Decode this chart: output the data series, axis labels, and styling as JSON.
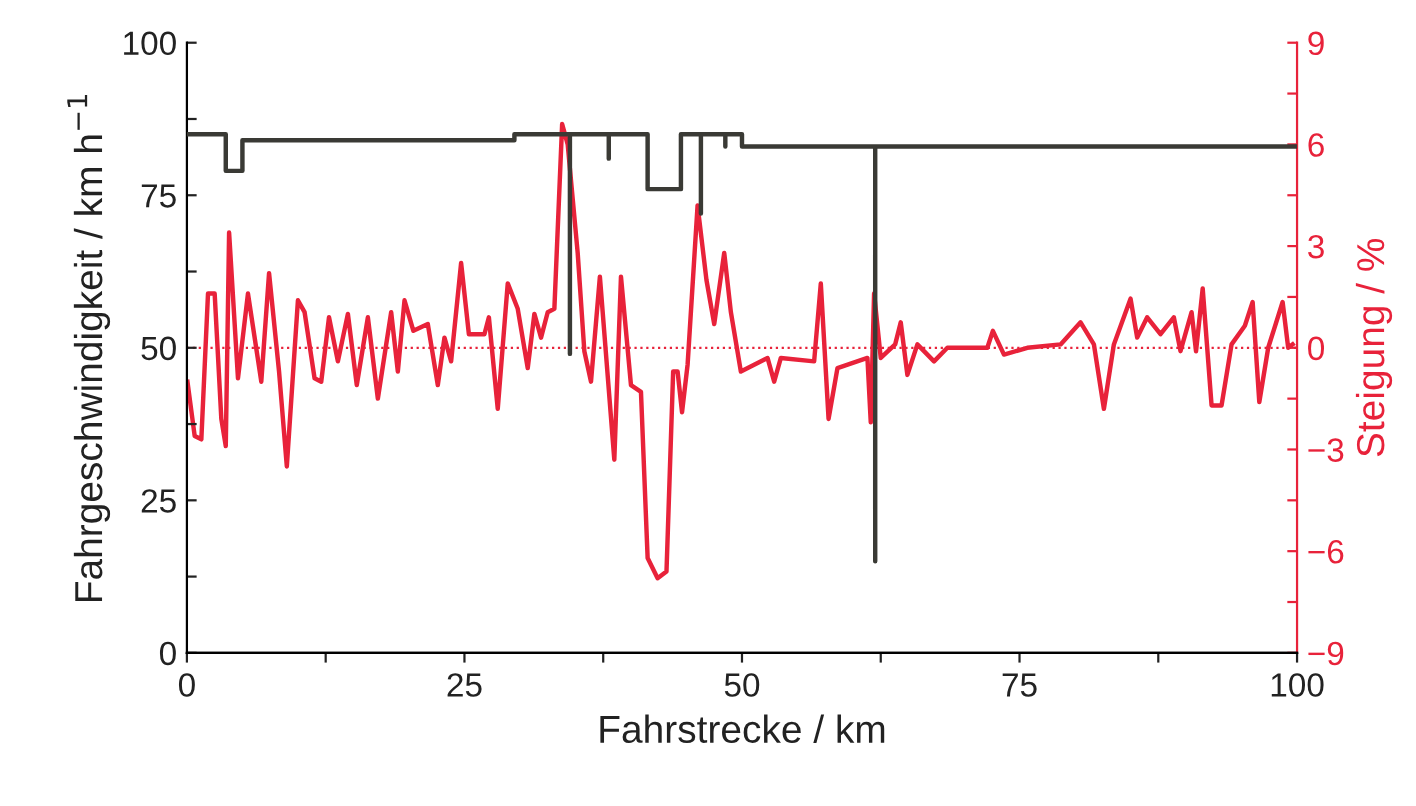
{
  "chart_data": {
    "type": "line",
    "xlabel": "Fahrstrecke / km",
    "ylabel": "Fahrgeschwindigkeit / km h$^{−1}$",
    "y2label": "Steigung / %",
    "xlim": [
      0,
      100
    ],
    "xticks": [
      0,
      {
        "value": 12.5,
        "label": null
      },
      25,
      {
        "value": 37.5,
        "label": null
      },
      50,
      {
        "value": 62.5,
        "label": null
      },
      75,
      {
        "value": 87.5,
        "label": null
      },
      100
    ],
    "ylim": [
      0,
      100
    ],
    "yticks": [
      0,
      {
        "value": 12.5,
        "label": null
      },
      25,
      {
        "value": 37.5,
        "label": null
      },
      50,
      {
        "value": 62.5,
        "label": null
      },
      75,
      {
        "value": 87.5,
        "label": null
      },
      100
    ],
    "y2lim": [
      -9,
      9
    ],
    "y2ticks": [
      {
        "value": -9,
        "label": "−9"
      },
      {
        "value": -7.5,
        "label": null
      },
      {
        "value": -6,
        "label": "−6"
      },
      {
        "value": -4.5,
        "label": null
      },
      {
        "value": -3,
        "label": "−3"
      },
      {
        "value": -1.5,
        "label": null
      },
      0,
      {
        "value": 1.5,
        "label": null
      },
      3,
      {
        "value": 4.5,
        "label": null
      },
      6,
      {
        "value": 7.5,
        "label": null
      },
      9
    ],
    "grid": false,
    "legend": false,
    "marker": "none",
    "line_style": "solid",
    "ref_lines": [
      {
        "axis": "y2",
        "value": 0,
        "color": "#e8223a",
        "line_style": "dotted"
      }
    ],
    "series": [
      {
        "color": "#3a3a35",
        "x": [
          0,
          3.5,
          3.5,
          5,
          5,
          29.5,
          29.5,
          34.5,
          34.5,
          34.5,
          38,
          38,
          38,
          41.5,
          41.5,
          44.5,
          44.5,
          46.3,
          46.3,
          46.3,
          48.5,
          48.5,
          48.5,
          50,
          50,
          62,
          62,
          62,
          100
        ],
        "values": [
          85,
          85,
          79,
          79,
          84,
          84,
          85,
          85,
          49,
          85,
          85,
          81,
          85,
          85,
          76,
          76,
          85,
          85,
          72,
          85,
          85,
          83,
          85,
          85,
          83,
          83,
          15,
          83,
          83
        ]
      },
      {
        "color": "#e8223a",
        "axis": "y2",
        "x": [
          0.05,
          0.7,
          1.3,
          1.9,
          2.5,
          3.1,
          3.5,
          3.8,
          4.6,
          5.5,
          6.7,
          7.4,
          8.3,
          9.0,
          10.0,
          10.6,
          11.5,
          12.1,
          12.8,
          13.6,
          14.5,
          15.3,
          16.3,
          17.2,
          18.4,
          19.0,
          19.6,
          20.4,
          21.7,
          22.6,
          23.2,
          23.8,
          24.7,
          25.4,
          26.8,
          27.2,
          28.0,
          28.9,
          29.8,
          30.7,
          31.3,
          31.9,
          32.5,
          33.1,
          33.8,
          34.3,
          35.2,
          35.8,
          36.4,
          37.2,
          38.5,
          39.1,
          40.0,
          40.9,
          41.5,
          42.4,
          43.2,
          43.8,
          44.2,
          44.6,
          45.1,
          46.0,
          46.8,
          47.5,
          48.4,
          49.0,
          49.9,
          52.3,
          52.9,
          53.5,
          56.5,
          57.1,
          57.8,
          58.6,
          61.3,
          61.6,
          61.9,
          62.5,
          63.8,
          64.3,
          64.9,
          65.8,
          67.3,
          68.5,
          72.1,
          72.6,
          73.6,
          75.7,
          78.7,
          80.5,
          81.7,
          82.6,
          83.5,
          85.0,
          85.6,
          86.5,
          87.7,
          88.9,
          89.5,
          90.5,
          90.9,
          91.5,
          92.3,
          93.2,
          94.1,
          95.3,
          96.0,
          96.6,
          97.4,
          98.7,
          99.2,
          99.6
        ],
        "values": [
          -1.0,
          -2.6,
          -2.7,
          1.6,
          1.6,
          -2.1,
          -2.9,
          3.4,
          -0.9,
          1.6,
          -1.0,
          2.2,
          -0.7,
          -3.5,
          1.4,
          1.05,
          -0.9,
          -1.0,
          0.9,
          -0.4,
          1.0,
          -1.1,
          0.9,
          -1.5,
          1.05,
          -0.7,
          1.4,
          0.5,
          0.7,
          -1.1,
          0.3,
          -0.4,
          2.5,
          0.4,
          0.4,
          0.9,
          -1.8,
          1.9,
          1.15,
          -0.6,
          1.0,
          0.3,
          1.05,
          1.15,
          6.6,
          6.0,
          2.8,
          -0.1,
          -1.0,
          2.1,
          -3.3,
          2.1,
          -1.1,
          -1.3,
          -6.2,
          -6.8,
          -6.6,
          -0.7,
          -0.7,
          -1.9,
          -0.5,
          4.2,
          2.0,
          0.7,
          2.8,
          1.05,
          -0.7,
          -0.3,
          -1.0,
          -0.3,
          -0.4,
          1.9,
          -2.1,
          -0.6,
          -0.3,
          -2.2,
          1.6,
          -0.3,
          0.1,
          0.75,
          -0.8,
          0.1,
          -0.4,
          0,
          0,
          0.5,
          -0.2,
          0,
          0.1,
          0.75,
          0.1,
          -1.8,
          0.1,
          1.45,
          0.3,
          0.9,
          0.4,
          0.9,
          -0.1,
          1.05,
          -0.1,
          1.75,
          -1.7,
          -1.7,
          0.1,
          0.65,
          1.35,
          -1.6,
          0,
          1.35,
          0,
          0.1
        ]
      }
    ]
  }
}
